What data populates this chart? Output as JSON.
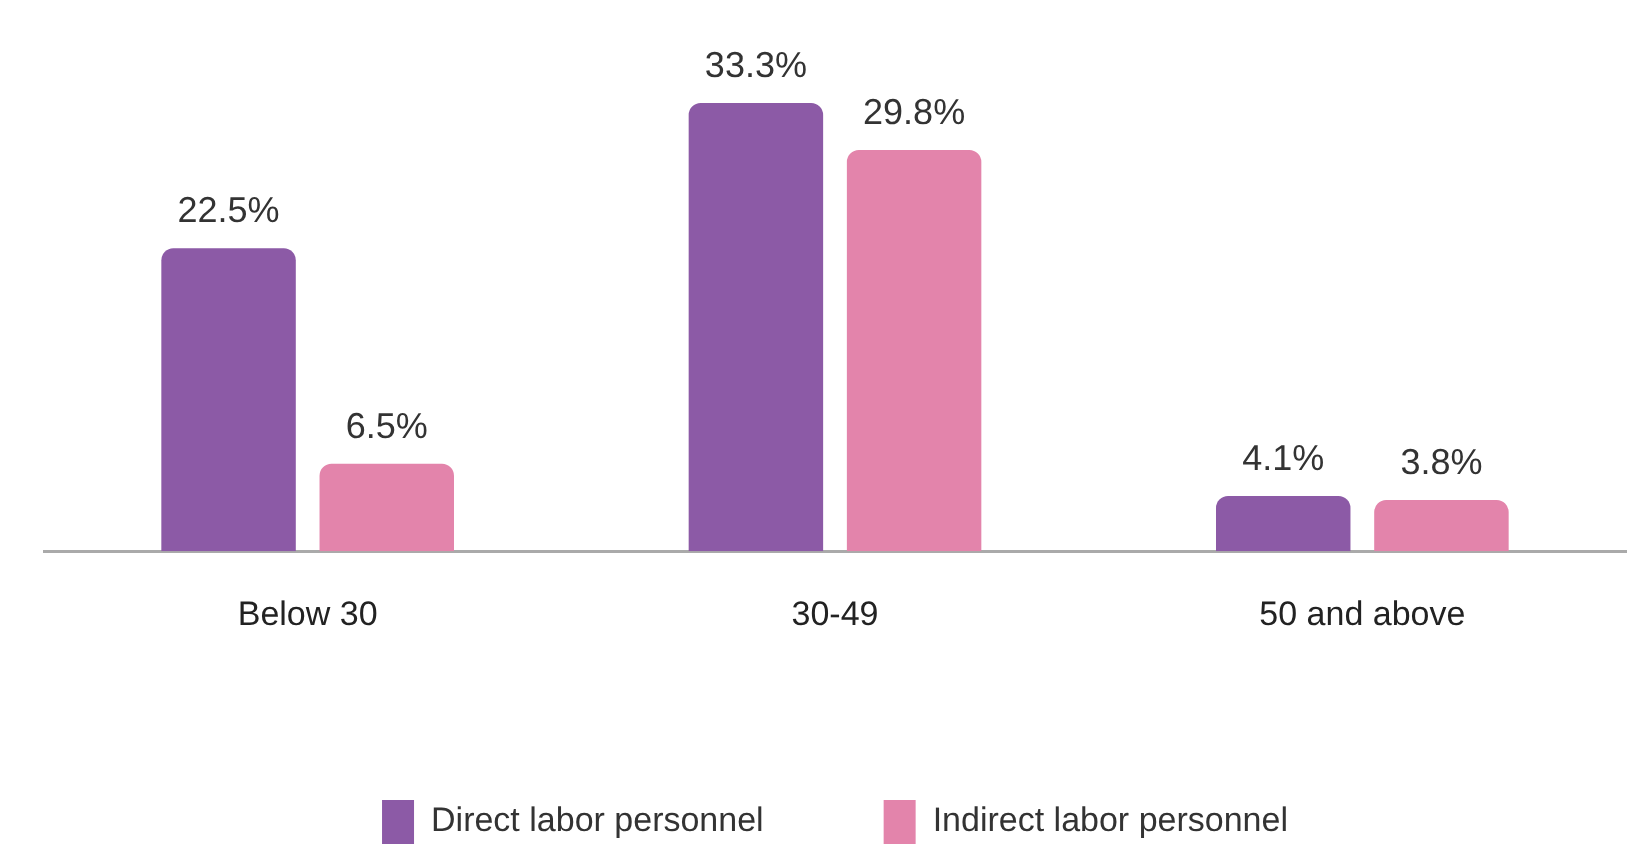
{
  "chart_data": {
    "type": "bar",
    "categories": [
      "Below 30",
      "30-49",
      "50 and above"
    ],
    "series": [
      {
        "name": "Direct labor personnel",
        "color": "#8c5aa6",
        "values": [
          22.5,
          33.3,
          4.1
        ],
        "value_labels": [
          "22.5%",
          "33.3%",
          "4.1%"
        ]
      },
      {
        "name": "Indirect labor personnel",
        "color": "#e384ab",
        "values": [
          6.5,
          29.8,
          3.8
        ],
        "value_labels": [
          "6.5%",
          "29.8%",
          "3.8%"
        ]
      }
    ],
    "legend": "bottom",
    "grid": false,
    "tick_labels": "x"
  }
}
